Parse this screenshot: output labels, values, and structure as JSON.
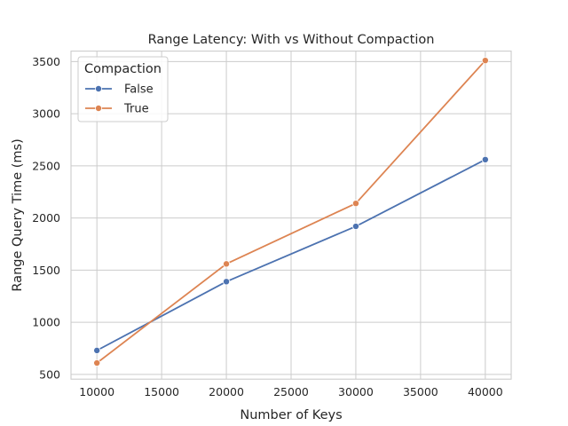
{
  "chart_data": {
    "type": "line",
    "title": "Range Latency: With vs Without Compaction",
    "xlabel": "Number of Keys",
    "ylabel": "Range Query Time (ms)",
    "x": [
      10000,
      20000,
      30000,
      40000
    ],
    "xlim": [
      8000,
      42000
    ],
    "ylim": [
      455,
      3600
    ],
    "xticks": [
      10000,
      15000,
      20000,
      25000,
      30000,
      35000,
      40000
    ],
    "yticks": [
      500,
      1000,
      1500,
      2000,
      2500,
      3000,
      3500
    ],
    "grid": true,
    "legend": {
      "title": "Compaction",
      "placement": "top-left"
    },
    "series": [
      {
        "name": "False",
        "color": "#4c72b0",
        "marker": "circle",
        "values": [
          730,
          1390,
          1920,
          2560
        ]
      },
      {
        "name": "True",
        "color": "#dd8452",
        "marker": "circle",
        "values": [
          610,
          1560,
          2140,
          3510
        ]
      }
    ]
  }
}
